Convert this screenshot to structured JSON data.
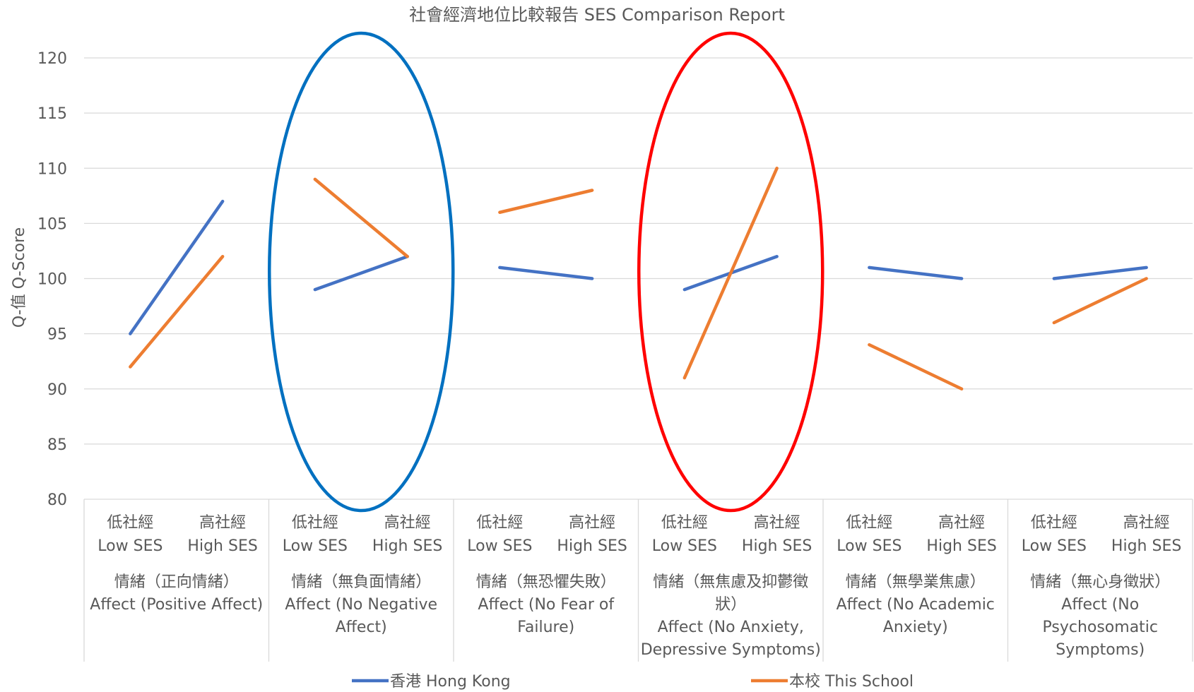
{
  "chart_data": {
    "type": "line",
    "title": "社會經濟地位比較報告 SES Comparison Report",
    "ylabel": "Q-值 Q-Score",
    "xlabel": "",
    "ylim": [
      80,
      120
    ],
    "yticks": [
      80,
      85,
      90,
      95,
      100,
      105,
      110,
      115,
      120
    ],
    "grid": true,
    "legend_position": "bottom",
    "categories": [
      {
        "line1": "低社經",
        "line2": "Low SES"
      },
      {
        "line1": "高社經",
        "line2": "High SES"
      }
    ],
    "groups": [
      {
        "lines": [
          "情緒（正向情緒）",
          "Affect (Positive Affect)"
        ]
      },
      {
        "lines": [
          "情緒（無負面情緒）",
          "Affect (No Negative",
          "Affect)"
        ]
      },
      {
        "lines": [
          "情緒（無恐懼失敗）",
          "Affect (No Fear of",
          "Failure)"
        ]
      },
      {
        "lines": [
          "情緒（無焦慮及抑鬱徵",
          "狀）",
          "Affect (No Anxiety,",
          "Depressive Symptoms)"
        ]
      },
      {
        "lines": [
          "情緒（無學業焦慮）",
          "Affect (No Academic",
          "Anxiety)"
        ]
      },
      {
        "lines": [
          "情緒（無心身徵狀）",
          "Affect (No",
          "Psychosomatic",
          "Symptoms)"
        ]
      }
    ],
    "series": [
      {
        "name": "香港 Hong Kong",
        "color": "#4472C4",
        "values": [
          [
            95,
            107
          ],
          [
            99,
            102
          ],
          [
            101,
            100
          ],
          [
            99,
            102
          ],
          [
            101,
            100
          ],
          [
            100,
            101
          ]
        ]
      },
      {
        "name": "本校 This School",
        "color": "#ED7D31",
        "values": [
          [
            92,
            102
          ],
          [
            109,
            102
          ],
          [
            106,
            108
          ],
          [
            91,
            110
          ],
          [
            94,
            90
          ],
          [
            96,
            100
          ]
        ]
      }
    ],
    "annotations": [
      {
        "shape": "ellipse",
        "group_index": 1,
        "color": "#0070C0"
      },
      {
        "shape": "ellipse",
        "group_index": 3,
        "color": "#FF0000"
      }
    ]
  }
}
